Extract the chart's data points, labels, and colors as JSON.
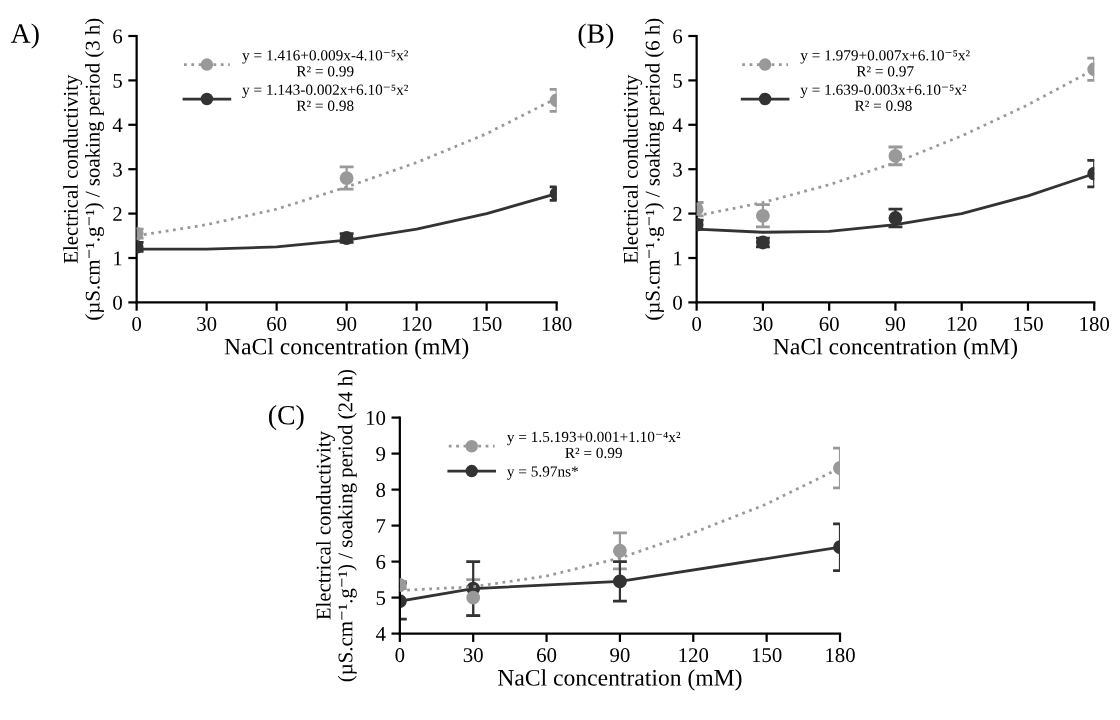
{
  "chart_data": [
    {
      "type": "scatter",
      "annotations": [
        "A)"
      ],
      "xlabel": "NaCl concentration (mM)",
      "ylabel": "Electrical conductivity\n(µS.cm⁻¹.g⁻¹) / soaking period (3 h)",
      "xlim": [
        0,
        180
      ],
      "xticks": [
        0,
        30,
        60,
        90,
        120,
        150,
        180
      ],
      "ylim": [
        0,
        6
      ],
      "yticks": [
        0,
        1,
        2,
        3,
        4,
        5,
        6
      ],
      "grid": false,
      "legend": "top left",
      "marker": "circle",
      "series": [
        {
          "name": "y = 1.416+0.009x-4.10⁻⁵x²\nR² = 0.99",
          "color": "#999999",
          "line_style": "dotted",
          "x": [
            0,
            90,
            180
          ],
          "values": [
            1.55,
            2.8,
            4.55
          ],
          "errors": [
            0.1,
            0.25,
            0.25
          ]
        },
        {
          "name": "y = 1.143-0.002x+6.10⁻⁵x²\nR² = 0.98",
          "color": "#333333",
          "line_style": "solid",
          "x": [
            0,
            90,
            180
          ],
          "values": [
            1.25,
            1.45,
            2.45
          ],
          "errors": [
            0.1,
            0.1,
            0.15
          ]
        },
        {
          "type": "line",
          "marker": "none",
          "color": "#999999",
          "line_style": "dotted",
          "x": [
            0,
            30,
            60,
            90,
            120,
            150,
            180
          ],
          "values": [
            1.5,
            1.75,
            2.1,
            2.6,
            3.15,
            3.8,
            4.6
          ]
        },
        {
          "type": "line",
          "marker": "none",
          "color": "#333333",
          "line_style": "solid",
          "x": [
            0,
            30,
            60,
            90,
            120,
            150,
            180
          ],
          "values": [
            1.2,
            1.2,
            1.25,
            1.4,
            1.65,
            2.0,
            2.45
          ]
        }
      ]
    },
    {
      "type": "scatter",
      "annotations": [
        "(B)"
      ],
      "xlabel": "NaCl concentration (mM)",
      "ylabel": "Electrical conductivity\n(µS.cm⁻¹.g⁻¹) / soaking period (6 h)",
      "xlim": [
        0,
        180
      ],
      "xticks": [
        0,
        30,
        60,
        90,
        120,
        150,
        180
      ],
      "ylim": [
        0,
        6
      ],
      "yticks": [
        0,
        1,
        2,
        3,
        4,
        5,
        6
      ],
      "grid": false,
      "legend": "top left",
      "marker": "circle",
      "series": [
        {
          "name": "y = 1.979+0.007x+6.10⁻⁵x²\nR² = 0.97",
          "color": "#999999",
          "line_style": "dotted",
          "x": [
            0,
            30,
            90,
            180
          ],
          "values": [
            2.1,
            1.95,
            3.3,
            5.25
          ],
          "errors": [
            0.15,
            0.25,
            0.2,
            0.25
          ]
        },
        {
          "name": "y = 1.639-0.003x+6.10⁻⁵x²\nR² = 0.98",
          "color": "#333333",
          "line_style": "solid",
          "x": [
            0,
            30,
            90,
            180
          ],
          "values": [
            1.75,
            1.35,
            1.9,
            2.9
          ],
          "errors": [
            0.1,
            0.1,
            0.2,
            0.3
          ]
        },
        {
          "type": "line",
          "marker": "none",
          "color": "#999999",
          "line_style": "dotted",
          "x": [
            0,
            30,
            60,
            90,
            120,
            150,
            180
          ],
          "values": [
            1.95,
            2.25,
            2.65,
            3.15,
            3.75,
            4.45,
            5.25
          ]
        },
        {
          "type": "line",
          "marker": "none",
          "color": "#333333",
          "line_style": "solid",
          "x": [
            0,
            30,
            60,
            90,
            120,
            150,
            180
          ],
          "values": [
            1.65,
            1.58,
            1.6,
            1.75,
            2.0,
            2.4,
            2.9
          ]
        }
      ]
    },
    {
      "type": "scatter",
      "annotations": [
        "(C)"
      ],
      "xlabel": "NaCl concentration (mM)",
      "ylabel": "Electrical conductivity\n(µS.cm⁻¹.g⁻¹) / soaking period (24 h)",
      "xlim": [
        0,
        180
      ],
      "xticks": [
        0,
        30,
        60,
        90,
        120,
        150,
        180
      ],
      "ylim": [
        4,
        10
      ],
      "yticks": [
        4,
        5,
        6,
        7,
        8,
        9,
        10
      ],
      "grid": false,
      "legend": "top left",
      "marker": "circle",
      "series": [
        {
          "name": "y = 1.5.193+0.001+1.10⁻⁴x²\nR² = 0.99",
          "color": "#999999",
          "line_style": "dotted",
          "x": [
            0,
            30,
            90,
            180
          ],
          "values": [
            5.35,
            5.0,
            6.3,
            8.6
          ],
          "errors": [
            0.1,
            0.5,
            0.5,
            0.55
          ]
        },
        {
          "name": "y = 5.97ns*",
          "type": "line",
          "color": "#333333",
          "line_style": "solid",
          "x": [
            0,
            30,
            90,
            180
          ],
          "values": [
            4.9,
            5.25,
            5.45,
            6.4
          ],
          "errors": [
            0.5,
            0.75,
            0.55,
            0.65
          ]
        },
        {
          "type": "line",
          "marker": "none",
          "color": "#999999",
          "line_style": "dotted",
          "x": [
            0,
            30,
            60,
            90,
            120,
            150,
            180
          ],
          "values": [
            5.2,
            5.3,
            5.6,
            6.1,
            6.8,
            7.6,
            8.6
          ]
        }
      ]
    }
  ]
}
